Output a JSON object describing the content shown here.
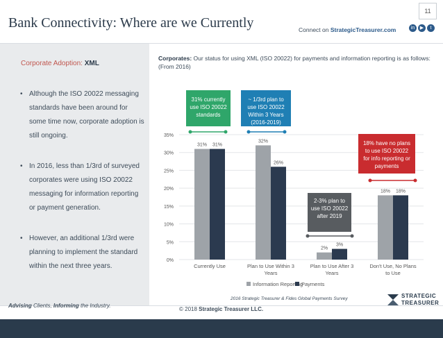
{
  "header": {
    "title": "Bank Connectivity: Where are we Currently",
    "connect_prefix": "Connect on ",
    "connect_site": "StrategicTreasurer.com",
    "page_number": "11",
    "social_icons": [
      "linkedin-icon",
      "youtube-icon",
      "twitter-icon"
    ]
  },
  "left": {
    "heading_prefix": "Corporate Adoption: ",
    "heading_bold": "XML",
    "bullets": [
      "Although the ISO 20022 messaging standards have been around for some time now, corporate adoption is still ongoing.",
      "In 2016, less than 1/3rd of surveyed corporates were using ISO 20022 messaging for information reporting or payment generation.",
      "However, an additional 1/3rd were planning to implement the standard within the next three years."
    ]
  },
  "right": {
    "heading_bold": "Corporates:",
    "heading_rest": " Our status for using XML (ISO 20022) for payments and information reporting is as follows: (From 2016)"
  },
  "callouts": {
    "green": "31% currently use ISO 20022 standards",
    "blue": "~ 1/3rd plan to use ISO 20022 Within 3 Years (2016-2019)",
    "red": "18% have no plans to use ISO 20022 for info reporting or payments",
    "gray": "2-3% plan to use ISO 20022 after 2019"
  },
  "chart_data": {
    "type": "bar",
    "categories": [
      "Currently Use",
      "Plan to Use Within 3 Years",
      "Plan to Use After 3 Years",
      "Don't Use, No Plans to Use"
    ],
    "series": [
      {
        "name": "Information Reporting",
        "values": [
          31,
          32,
          2,
          18
        ],
        "labels": [
          "31%",
          "32%",
          "2%",
          "18%"
        ],
        "color": "#9ea3a8"
      },
      {
        "name": "Payments",
        "values": [
          31,
          26,
          3,
          18
        ],
        "labels": [
          "31%",
          "26%",
          "3%",
          "18%"
        ],
        "color": "#2b3a4f"
      }
    ],
    "ylim": [
      0,
      35
    ],
    "yticks": [
      "0%",
      "5%",
      "10%",
      "15%",
      "20%",
      "25%",
      "30%",
      "35%"
    ],
    "legend": "bottom",
    "source": "2016 Strategic Treasurer & Fides Global Payments Survey"
  },
  "footer": {
    "tagline_1": "Advising",
    "tagline_2": " Clients, ",
    "tagline_3": "Informing",
    "tagline_4": " the Industry.",
    "copyright_prefix": "© 2018 ",
    "copyright_bold": "Strategic Treasurer LLC.",
    "logo_text_1": "STRATEGIC",
    "logo_text_2": "TREASURER"
  }
}
